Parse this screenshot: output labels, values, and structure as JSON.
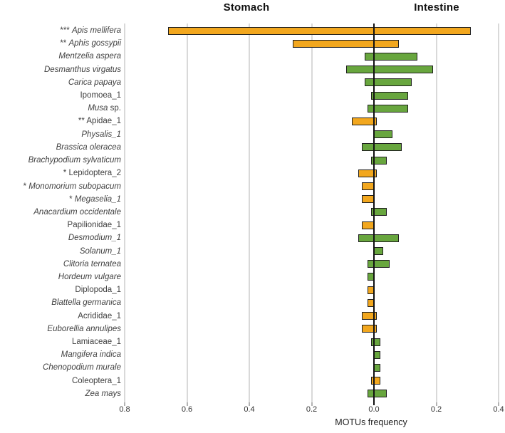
{
  "chart_data": {
    "type": "bar",
    "subtype": "diverging-horizontal",
    "left_side_label": "Stomach",
    "right_side_label": "Intestine",
    "xlabel": "MOTUs frequency",
    "xlim": [
      -0.8,
      0.4
    ],
    "grid": true,
    "x_ticks": [
      {
        "value": -0.8,
        "label": "0.8"
      },
      {
        "value": -0.6,
        "label": "0.6"
      },
      {
        "value": -0.4,
        "label": "0.4"
      },
      {
        "value": -0.2,
        "label": "0.2"
      },
      {
        "value": 0.0,
        "label": "0.0"
      },
      {
        "value": 0.2,
        "label": "0.2"
      },
      {
        "value": 0.4,
        "label": "0.4"
      }
    ],
    "colors": {
      "orange": "#F2A71E",
      "green": "#68A63E",
      "outline": "#1F1F1F",
      "axis": "#111111",
      "gridline": "#D9D9D9",
      "tick": "#B3B3B3"
    },
    "value_note": "stomach = bar extent left of zero, intestine = bar extent right of zero, in MOTUs frequency units",
    "rows": [
      {
        "prefix": "***",
        "name": "Apis mellifera",
        "suffix": "",
        "italic": true,
        "stomach": 0.66,
        "intestine": 0.31,
        "color": "orange"
      },
      {
        "prefix": "**",
        "name": "Aphis gossypii",
        "suffix": "",
        "italic": true,
        "stomach": 0.26,
        "intestine": 0.08,
        "color": "orange"
      },
      {
        "prefix": "",
        "name": "Mentzelia aspera",
        "suffix": "",
        "italic": true,
        "stomach": 0.03,
        "intestine": 0.14,
        "color": "green"
      },
      {
        "prefix": "",
        "name": "Desmanthus virgatus",
        "suffix": "",
        "italic": true,
        "stomach": 0.09,
        "intestine": 0.19,
        "color": "green"
      },
      {
        "prefix": "",
        "name": "Carica papaya",
        "suffix": "",
        "italic": true,
        "stomach": 0.03,
        "intestine": 0.12,
        "color": "green"
      },
      {
        "prefix": "",
        "name": "Ipomoea_1",
        "suffix": "",
        "italic": false,
        "stomach": 0.01,
        "intestine": 0.11,
        "color": "green"
      },
      {
        "prefix": "",
        "name": "Musa",
        "suffix": " sp.",
        "italic": true,
        "stomach": 0.02,
        "intestine": 0.11,
        "color": "green"
      },
      {
        "prefix": "**",
        "name": "Apidae_1",
        "suffix": "",
        "italic": false,
        "stomach": 0.07,
        "intestine": 0.01,
        "color": "orange"
      },
      {
        "prefix": "",
        "name": "Physalis_1",
        "suffix": "",
        "italic": true,
        "stomach": 0.0,
        "intestine": 0.06,
        "color": "green"
      },
      {
        "prefix": "",
        "name": "Brassica oleracea",
        "suffix": "",
        "italic": true,
        "stomach": 0.04,
        "intestine": 0.09,
        "color": "green"
      },
      {
        "prefix": "",
        "name": "Brachypodium sylvaticum",
        "suffix": "",
        "italic": true,
        "stomach": 0.01,
        "intestine": 0.04,
        "color": "green"
      },
      {
        "prefix": "*",
        "name": "Lepidoptera_2",
        "suffix": "",
        "italic": false,
        "stomach": 0.05,
        "intestine": 0.01,
        "color": "orange"
      },
      {
        "prefix": "*",
        "name": "Monomorium subopacum",
        "suffix": "",
        "italic": true,
        "stomach": 0.04,
        "intestine": 0.0,
        "color": "orange"
      },
      {
        "prefix": "*",
        "name": "Megaselia_1",
        "suffix": "",
        "italic": true,
        "stomach": 0.04,
        "intestine": 0.0,
        "color": "orange"
      },
      {
        "prefix": "",
        "name": "Anacardium occidentale",
        "suffix": "",
        "italic": true,
        "stomach": 0.01,
        "intestine": 0.04,
        "color": "green"
      },
      {
        "prefix": "",
        "name": "Papilionidae_1",
        "suffix": "",
        "italic": false,
        "stomach": 0.04,
        "intestine": 0.0,
        "color": "orange"
      },
      {
        "prefix": "",
        "name": "Desmodium_1",
        "suffix": "",
        "italic": true,
        "stomach": 0.05,
        "intestine": 0.08,
        "color": "green"
      },
      {
        "prefix": "",
        "name": "Solanum_1",
        "suffix": "",
        "italic": true,
        "stomach": 0.0,
        "intestine": 0.03,
        "color": "green"
      },
      {
        "prefix": "",
        "name": "Clitoria ternatea",
        "suffix": "",
        "italic": true,
        "stomach": 0.02,
        "intestine": 0.05,
        "color": "green"
      },
      {
        "prefix": "",
        "name": "Hordeum vulgare",
        "suffix": "",
        "italic": true,
        "stomach": 0.02,
        "intestine": 0.0,
        "color": "green"
      },
      {
        "prefix": "",
        "name": "Diplopoda_1",
        "suffix": "",
        "italic": false,
        "stomach": 0.02,
        "intestine": 0.0,
        "color": "orange"
      },
      {
        "prefix": "",
        "name": "Blattella germanica",
        "suffix": "",
        "italic": true,
        "stomach": 0.02,
        "intestine": 0.0,
        "color": "orange"
      },
      {
        "prefix": "",
        "name": "Acrididae_1",
        "suffix": "",
        "italic": false,
        "stomach": 0.04,
        "intestine": 0.01,
        "color": "orange"
      },
      {
        "prefix": "",
        "name": "Euborellia annulipes",
        "suffix": "",
        "italic": true,
        "stomach": 0.04,
        "intestine": 0.01,
        "color": "orange"
      },
      {
        "prefix": "",
        "name": "Lamiaceae_1",
        "suffix": "",
        "italic": false,
        "stomach": 0.01,
        "intestine": 0.02,
        "color": "green"
      },
      {
        "prefix": "",
        "name": "Mangifera indica",
        "suffix": "",
        "italic": true,
        "stomach": 0.0,
        "intestine": 0.02,
        "color": "green"
      },
      {
        "prefix": "",
        "name": "Chenopodium murale",
        "suffix": "",
        "italic": true,
        "stomach": 0.0,
        "intestine": 0.02,
        "color": "green"
      },
      {
        "prefix": "",
        "name": "Coleoptera_1",
        "suffix": "",
        "italic": false,
        "stomach": 0.01,
        "intestine": 0.02,
        "color": "orange"
      },
      {
        "prefix": "",
        "name": "Zea mays",
        "suffix": "",
        "italic": true,
        "stomach": 0.02,
        "intestine": 0.04,
        "color": "green"
      }
    ]
  }
}
